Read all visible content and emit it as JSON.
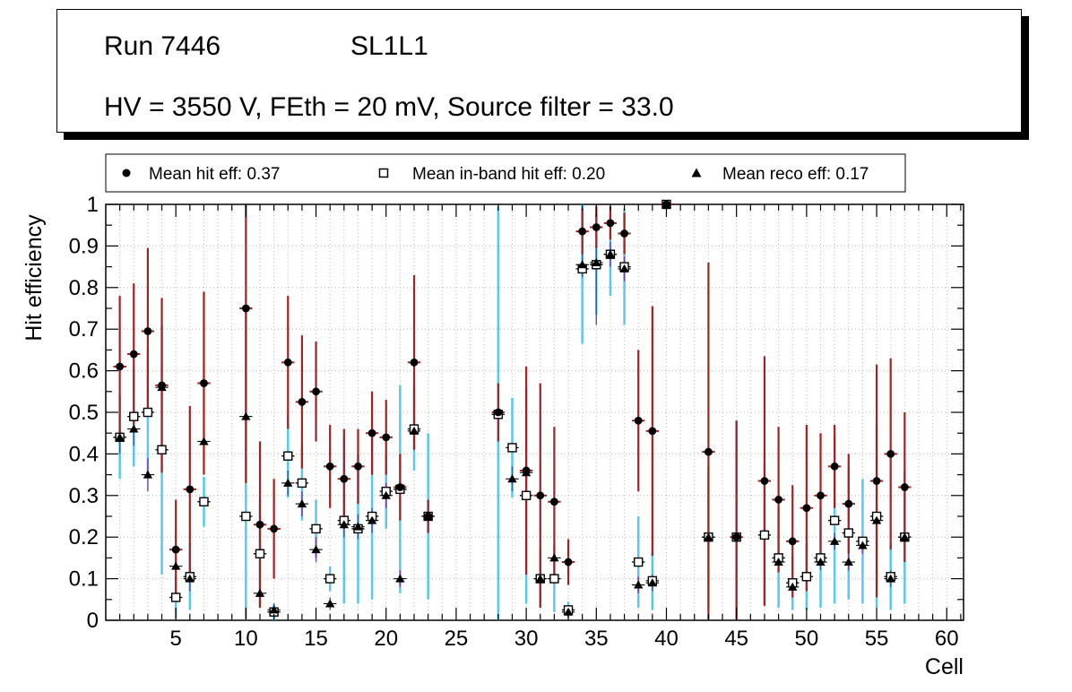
{
  "title_box": {
    "run": "Run 7446",
    "layer": "SL1L1",
    "conditions": "HV = 3550 V, FEth = 20 mV, Source filter = 33.0"
  },
  "legend": {
    "entries": [
      {
        "marker": "filled-circle-icon",
        "label": "Mean hit  eff: 0.37"
      },
      {
        "marker": "open-square-icon",
        "label": "Mean in-band hit eff: 0.20"
      },
      {
        "marker": "filled-triangle-icon",
        "label": "Mean reco eff: 0.17"
      }
    ]
  },
  "chart_data": {
    "type": "scatter",
    "title": "",
    "xlabel": "Cell",
    "ylabel": "Hit efficiency",
    "xlim": [
      0,
      61.2
    ],
    "ylim": [
      0,
      1
    ],
    "x_ticks": [
      5,
      10,
      15,
      20,
      25,
      30,
      35,
      40,
      45,
      50,
      55,
      60
    ],
    "y_ticks": [
      0,
      0.1,
      0.2,
      0.3,
      0.4,
      0.5,
      0.6,
      0.7,
      0.8,
      0.9,
      1
    ],
    "grid": "dotted",
    "series_meta": [
      {
        "key": "hit",
        "name": "Mean hit eff",
        "mean": 0.37,
        "marker": "filled-circle",
        "marker_color": "#000000",
        "error_color": "#a52021"
      },
      {
        "key": "inband",
        "name": "Mean in-band hit eff",
        "mean": 0.2,
        "marker": "open-square",
        "marker_color": "#000000",
        "error_color": "#5ac8e8"
      },
      {
        "key": "reco",
        "name": "Mean reco eff",
        "mean": 0.17,
        "marker": "filled-triangle",
        "marker_color": "#000000",
        "error_color": "#7040a0"
      }
    ],
    "columns": [
      "cell",
      "hit",
      "hit_err",
      "inband",
      "inband_err",
      "reco",
      "reco_err"
    ],
    "points": [
      [
        1,
        0.61,
        0.17,
        0.44,
        0.1,
        0.44,
        0.04
      ],
      [
        2,
        0.64,
        0.17,
        0.49,
        0.12,
        0.46,
        0.04
      ],
      [
        3,
        0.695,
        0.2,
        0.5,
        0.15,
        0.35,
        0.04
      ],
      [
        4,
        0.565,
        0.21,
        0.41,
        0.3,
        0.56,
        0.03
      ],
      [
        5,
        0.17,
        0.12,
        0.055,
        0.05,
        0.13,
        0.03
      ],
      [
        6,
        0.315,
        0.2,
        0.105,
        0.08,
        0.1,
        0.03
      ],
      [
        7,
        0.57,
        0.22,
        0.285,
        0.06,
        0.43,
        0.03
      ],
      [
        10,
        0.75,
        0.42,
        0.25,
        0.5,
        0.49,
        0.03
      ],
      [
        11,
        0.23,
        0.2,
        0.16,
        0.13,
        0.065,
        0.02
      ],
      [
        12,
        0.22,
        0.12,
        0.02,
        0.02,
        0.025,
        0.015
      ],
      [
        13,
        0.62,
        0.16,
        0.395,
        0.1,
        0.33,
        0.03
      ],
      [
        14,
        0.525,
        0.16,
        0.33,
        0.09,
        0.28,
        0.03
      ],
      [
        15,
        0.55,
        0.12,
        0.22,
        0.07,
        0.17,
        0.03
      ],
      [
        16,
        0.37,
        0.1,
        0.1,
        0.03,
        0.04,
        0.015
      ],
      [
        17,
        0.34,
        0.12,
        0.24,
        0.2,
        0.23,
        0.03
      ],
      [
        18,
        0.37,
        0.09,
        0.22,
        0.18,
        0.225,
        0.03
      ],
      [
        19,
        0.45,
        0.1,
        0.25,
        0.2,
        0.24,
        0.03
      ],
      [
        20,
        0.44,
        0.09,
        0.31,
        0.09,
        0.3,
        0.03
      ],
      [
        21,
        0.32,
        0.08,
        0.315,
        0.25,
        0.1,
        0.02
      ],
      [
        22,
        0.62,
        0.21,
        0.46,
        0.1,
        0.455,
        0.03
      ],
      [
        23,
        0.25,
        0.04,
        0.25,
        0.2,
        0.25,
        0.02
      ],
      [
        28,
        0.5,
        0.07,
        0.495,
        0.5,
        null,
        null
      ],
      [
        29,
        null,
        null,
        0.415,
        0.12,
        0.34,
        0.03
      ],
      [
        30,
        0.36,
        0.25,
        0.3,
        0.26,
        0.355,
        0.03
      ],
      [
        31,
        0.3,
        0.27,
        0.1,
        0.07,
        0.1,
        0.02
      ],
      [
        32,
        0.285,
        0.18,
        0.1,
        0.08,
        0.15,
        0.02
      ],
      [
        33,
        0.14,
        0.055,
        0.025,
        0.02,
        0.02,
        0.01
      ],
      [
        34,
        0.935,
        0.055,
        0.845,
        0.18,
        0.855,
        0.03
      ],
      [
        35,
        0.945,
        0.05,
        0.855,
        0.12,
        0.86,
        0.15
      ],
      [
        36,
        0.955,
        0.04,
        0.88,
        0.1,
        0.88,
        0.03
      ],
      [
        37,
        0.93,
        0.05,
        0.85,
        0.14,
        0.845,
        0.03
      ],
      [
        38,
        0.48,
        0.17,
        0.14,
        0.11,
        0.085,
        0.02
      ],
      [
        39,
        0.455,
        0.3,
        0.095,
        0.07,
        0.09,
        0.02
      ],
      [
        40,
        1.0,
        0.004,
        1.0,
        0.004,
        1.0,
        0.004
      ],
      [
        43,
        0.405,
        0.455,
        0.2,
        0.17,
        0.2,
        0.02
      ],
      [
        45,
        0.2,
        0.28,
        0.2,
        0.28,
        null,
        null
      ],
      [
        47,
        0.335,
        0.3,
        0.205,
        0.17,
        null,
        null
      ],
      [
        48,
        0.29,
        0.175,
        0.15,
        0.12,
        0.14,
        0.02
      ],
      [
        49,
        0.19,
        0.135,
        0.09,
        0.065,
        0.08,
        0.02
      ],
      [
        50,
        0.27,
        0.2,
        0.105,
        0.08,
        null,
        null
      ],
      [
        51,
        0.3,
        0.15,
        0.15,
        0.12,
        0.14,
        0.02
      ],
      [
        52,
        0.37,
        0.1,
        0.24,
        0.2,
        0.19,
        0.02
      ],
      [
        53,
        0.28,
        0.12,
        0.21,
        0.16,
        0.14,
        0.02
      ],
      [
        54,
        null,
        null,
        0.19,
        0.15,
        0.18,
        0.02
      ],
      [
        55,
        0.335,
        0.28,
        0.25,
        0.22,
        0.24,
        0.02
      ],
      [
        56,
        0.4,
        0.23,
        0.105,
        0.08,
        0.1,
        0.02
      ],
      [
        57,
        0.32,
        0.18,
        0.2,
        0.16,
        0.2,
        0.02
      ]
    ]
  }
}
